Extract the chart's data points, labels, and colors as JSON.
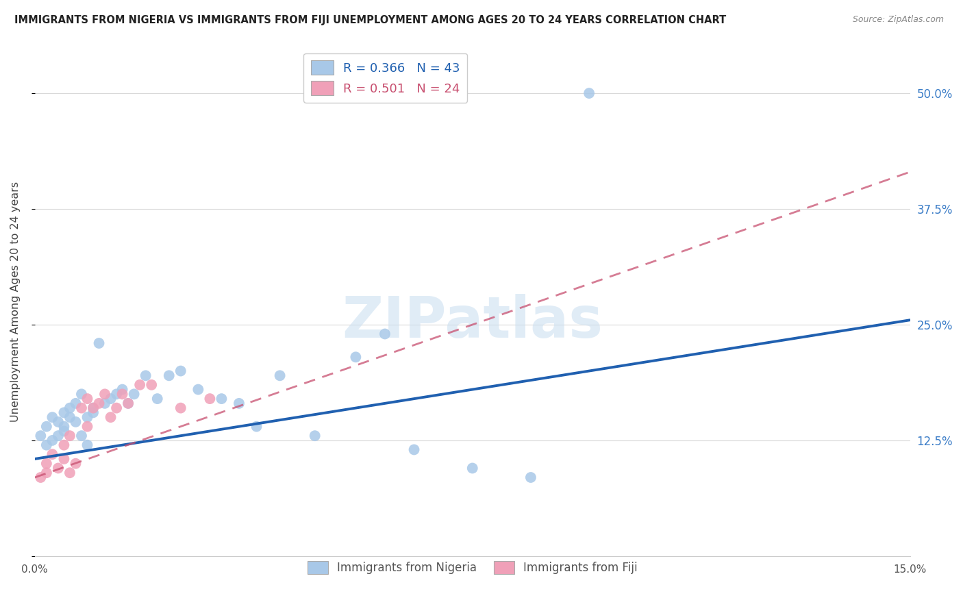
{
  "title": "IMMIGRANTS FROM NIGERIA VS IMMIGRANTS FROM FIJI UNEMPLOYMENT AMONG AGES 20 TO 24 YEARS CORRELATION CHART",
  "source": "Source: ZipAtlas.com",
  "ylabel": "Unemployment Among Ages 20 to 24 years",
  "xlim": [
    0.0,
    0.15
  ],
  "ylim": [
    0.0,
    0.55
  ],
  "x_ticks": [
    0.0,
    0.15
  ],
  "x_tick_labels": [
    "0.0%",
    "15.0%"
  ],
  "y_ticks": [
    0.0,
    0.125,
    0.25,
    0.375,
    0.5
  ],
  "y_tick_labels_right": [
    "",
    "12.5%",
    "25.0%",
    "37.5%",
    "50.0%"
  ],
  "nigeria_R": 0.366,
  "nigeria_N": 43,
  "fiji_R": 0.501,
  "fiji_N": 24,
  "nigeria_color": "#a8c8e8",
  "nigeria_line_color": "#2060b0",
  "fiji_color": "#f0a0b8",
  "fiji_line_color": "#c85070",
  "nigeria_scatter_x": [
    0.001,
    0.002,
    0.002,
    0.003,
    0.003,
    0.004,
    0.004,
    0.005,
    0.005,
    0.005,
    0.006,
    0.006,
    0.007,
    0.007,
    0.008,
    0.008,
    0.009,
    0.009,
    0.01,
    0.01,
    0.011,
    0.012,
    0.013,
    0.014,
    0.015,
    0.016,
    0.017,
    0.019,
    0.021,
    0.023,
    0.025,
    0.028,
    0.032,
    0.035,
    0.038,
    0.042,
    0.048,
    0.055,
    0.06,
    0.065,
    0.075,
    0.085,
    0.095
  ],
  "nigeria_scatter_y": [
    0.13,
    0.12,
    0.14,
    0.125,
    0.15,
    0.13,
    0.145,
    0.135,
    0.155,
    0.14,
    0.15,
    0.16,
    0.145,
    0.165,
    0.13,
    0.175,
    0.15,
    0.12,
    0.16,
    0.155,
    0.23,
    0.165,
    0.17,
    0.175,
    0.18,
    0.165,
    0.175,
    0.195,
    0.17,
    0.195,
    0.2,
    0.18,
    0.17,
    0.165,
    0.14,
    0.195,
    0.13,
    0.215,
    0.24,
    0.115,
    0.095,
    0.085,
    0.5
  ],
  "fiji_scatter_x": [
    0.001,
    0.002,
    0.002,
    0.003,
    0.004,
    0.005,
    0.005,
    0.006,
    0.006,
    0.007,
    0.008,
    0.009,
    0.009,
    0.01,
    0.011,
    0.012,
    0.013,
    0.014,
    0.015,
    0.016,
    0.018,
    0.02,
    0.025,
    0.03
  ],
  "fiji_scatter_y": [
    0.085,
    0.1,
    0.09,
    0.11,
    0.095,
    0.105,
    0.12,
    0.09,
    0.13,
    0.1,
    0.16,
    0.17,
    0.14,
    0.16,
    0.165,
    0.175,
    0.15,
    0.16,
    0.175,
    0.165,
    0.185,
    0.185,
    0.16,
    0.17
  ],
  "nigeria_line_x0": 0.0,
  "nigeria_line_y0": 0.105,
  "nigeria_line_x1": 0.15,
  "nigeria_line_y1": 0.255,
  "fiji_line_x0": 0.0,
  "fiji_line_y0": 0.085,
  "fiji_line_x1": 0.15,
  "fiji_line_y1": 0.415
}
